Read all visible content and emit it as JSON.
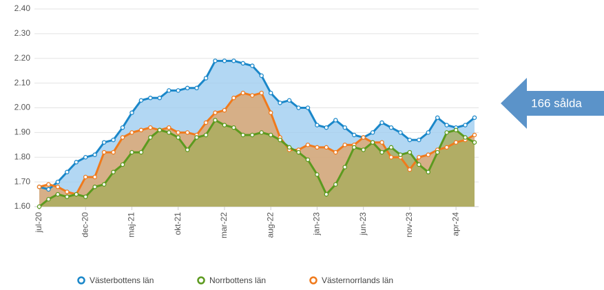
{
  "chart_data": {
    "type": "area",
    "categories": [
      "jul-20",
      null,
      null,
      null,
      null,
      "dec-20",
      null,
      null,
      null,
      null,
      "maj-21",
      null,
      null,
      null,
      null,
      "okt-21",
      null,
      null,
      null,
      null,
      "mar-22",
      null,
      null,
      null,
      null,
      "aug-22",
      null,
      null,
      null,
      null,
      "jan-23",
      null,
      null,
      null,
      null,
      "jun-23",
      null,
      null,
      null,
      null,
      "nov-23",
      null,
      null,
      null,
      null,
      "apr-24",
      null,
      null
    ],
    "series": [
      {
        "name": "Västerbottens län",
        "color": "#1a87c9",
        "fill": "#9fcdf0",
        "values": [
          1.68,
          1.67,
          1.7,
          1.74,
          1.78,
          1.8,
          1.81,
          1.86,
          1.87,
          1.92,
          1.98,
          2.03,
          2.04,
          2.04,
          2.07,
          2.07,
          2.08,
          2.08,
          2.12,
          2.19,
          2.19,
          2.19,
          2.18,
          2.17,
          2.13,
          2.06,
          2.02,
          2.03,
          2.0,
          2.0,
          1.93,
          1.92,
          1.95,
          1.92,
          1.89,
          1.88,
          1.9,
          1.94,
          1.92,
          1.9,
          1.87,
          1.87,
          1.9,
          1.96,
          1.93,
          1.92,
          1.93,
          1.96
        ]
      },
      {
        "name": "Norrbottens län",
        "color": "#5c9a1f",
        "fill": "#a7ac5c",
        "values": [
          1.6,
          1.63,
          1.65,
          1.64,
          1.65,
          1.64,
          1.68,
          1.69,
          1.74,
          1.77,
          1.82,
          1.82,
          1.88,
          1.91,
          1.9,
          1.88,
          1.83,
          1.88,
          1.89,
          1.95,
          1.93,
          1.92,
          1.89,
          1.89,
          1.9,
          1.89,
          1.87,
          1.84,
          1.82,
          1.79,
          1.73,
          1.65,
          1.69,
          1.76,
          1.84,
          1.83,
          1.86,
          1.82,
          1.84,
          1.81,
          1.82,
          1.77,
          1.74,
          1.82,
          1.9,
          1.91,
          1.88,
          1.86
        ]
      },
      {
        "name": "Västernorrlands län",
        "color": "#f07a1c",
        "fill": "#dfa56c",
        "values": [
          1.68,
          1.69,
          1.68,
          1.66,
          1.65,
          1.72,
          1.72,
          1.82,
          1.82,
          1.88,
          1.9,
          1.91,
          1.92,
          1.91,
          1.92,
          1.9,
          1.9,
          1.89,
          1.94,
          1.98,
          1.99,
          2.04,
          2.06,
          2.05,
          2.06,
          1.98,
          1.88,
          1.83,
          1.83,
          1.85,
          1.84,
          1.84,
          1.82,
          1.85,
          1.85,
          1.88,
          1.86,
          1.86,
          1.8,
          1.8,
          1.75,
          1.8,
          1.81,
          1.83,
          1.84,
          1.86,
          1.87,
          1.89
        ]
      }
    ],
    "ylim": [
      1.6,
      2.4
    ],
    "yticks": [
      {
        "value": 1.6,
        "label": "1.60"
      },
      {
        "value": 1.7,
        "label": "1.70"
      },
      {
        "value": 1.8,
        "label": "1.80"
      },
      {
        "value": 1.9,
        "label": "1.90"
      },
      {
        "value": 2.0,
        "label": "2.00"
      },
      {
        "value": 2.1,
        "label": "2.10"
      },
      {
        "value": 2.2,
        "label": "2.20"
      },
      {
        "value": 2.3,
        "label": "2.30"
      },
      {
        "value": 2.4,
        "label": "2.40"
      }
    ],
    "grid": true,
    "annotation": "166 sålda"
  }
}
